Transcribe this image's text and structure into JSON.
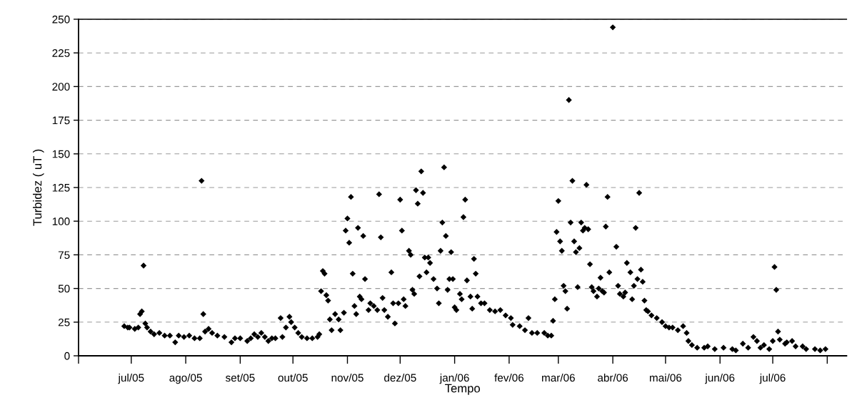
{
  "chart_data": {
    "type": "scatter",
    "xlabel": "Tempo",
    "ylabel": "Turbidez ( uT )",
    "xlim": [
      "2005-06-01",
      "2006-08-12"
    ],
    "xticks": [
      {
        "value": "2005-06-01",
        "label": null
      },
      {
        "value": "2005-07-01",
        "label": "jul/05"
      },
      {
        "value": "2005-08-01",
        "label": "ago/05"
      },
      {
        "value": "2005-09-01",
        "label": "set/05"
      },
      {
        "value": "2005-10-01",
        "label": "out/05"
      },
      {
        "value": "2005-11-01",
        "label": "nov/05"
      },
      {
        "value": "2005-12-01",
        "label": "dez/05"
      },
      {
        "value": "2006-01-01",
        "label": "jan/06"
      },
      {
        "value": "2006-02-01",
        "label": "fev/06"
      },
      {
        "value": "2006-03-01",
        "label": "mar/06"
      },
      {
        "value": "2006-04-01",
        "label": "abr/06"
      },
      {
        "value": "2006-05-01",
        "label": "mai/06"
      },
      {
        "value": "2006-06-01",
        "label": "jun/06"
      },
      {
        "value": "2006-07-01",
        "label": "jul/06"
      },
      {
        "value": "2006-08-01",
        "label": null
      }
    ],
    "ylim": [
      0,
      250
    ],
    "yticks": [
      0,
      25,
      50,
      75,
      100,
      125,
      150,
      175,
      200,
      225,
      250
    ],
    "grid": "y",
    "marker": "diamond",
    "series": [
      {
        "color": "#000000",
        "x": [
          "2005-06-27",
          "2005-06-29",
          "2005-06-30",
          "2005-07-03",
          "2005-07-05",
          "2005-07-06",
          "2005-07-07",
          "2005-07-08",
          "2005-07-09",
          "2005-07-10",
          "2005-07-12",
          "2005-07-14",
          "2005-07-17",
          "2005-07-20",
          "2005-07-23",
          "2005-07-26",
          "2005-07-28",
          "2005-07-31",
          "2005-08-03",
          "2005-08-06",
          "2005-08-09",
          "2005-08-10",
          "2005-08-11",
          "2005-08-12",
          "2005-08-14",
          "2005-08-16",
          "2005-08-19",
          "2005-08-23",
          "2005-08-27",
          "2005-08-29",
          "2005-09-01",
          "2005-09-05",
          "2005-09-07",
          "2005-09-09",
          "2005-09-11",
          "2005-09-13",
          "2005-09-15",
          "2005-09-17",
          "2005-09-19",
          "2005-09-21",
          "2005-09-24",
          "2005-09-25",
          "2005-09-27",
          "2005-09-29",
          "2005-09-30",
          "2005-10-02",
          "2005-10-04",
          "2005-10-06",
          "2005-10-09",
          "2005-10-12",
          "2005-10-15",
          "2005-10-16",
          "2005-10-17",
          "2005-10-18",
          "2005-10-19",
          "2005-10-20",
          "2005-10-21",
          "2005-10-22",
          "2005-10-23",
          "2005-10-25",
          "2005-10-27",
          "2005-10-28",
          "2005-10-30",
          "2005-10-31",
          "2005-11-01",
          "2005-11-02",
          "2005-11-03",
          "2005-11-04",
          "2005-11-05",
          "2005-11-06",
          "2005-11-07",
          "2005-11-08",
          "2005-11-09",
          "2005-11-10",
          "2005-11-11",
          "2005-11-13",
          "2005-11-14",
          "2005-11-16",
          "2005-11-18",
          "2005-11-19",
          "2005-11-20",
          "2005-11-21",
          "2005-11-22",
          "2005-11-24",
          "2005-11-26",
          "2005-11-27",
          "2005-11-28",
          "2005-11-30",
          "2005-12-01",
          "2005-12-02",
          "2005-12-03",
          "2005-12-04",
          "2005-12-06",
          "2005-12-07",
          "2005-12-08",
          "2005-12-09",
          "2005-12-10",
          "2005-12-11",
          "2005-12-12",
          "2005-12-13",
          "2005-12-14",
          "2005-12-15",
          "2005-12-16",
          "2005-12-17",
          "2005-12-18",
          "2005-12-20",
          "2005-12-22",
          "2005-12-23",
          "2005-12-24",
          "2005-12-25",
          "2005-12-26",
          "2005-12-27",
          "2005-12-28",
          "2005-12-29",
          "2005-12-30",
          "2005-12-31",
          "2006-01-01",
          "2006-01-02",
          "2006-01-04",
          "2006-01-05",
          "2006-01-06",
          "2006-01-07",
          "2006-01-08",
          "2006-01-10",
          "2006-01-11",
          "2006-01-12",
          "2006-01-13",
          "2006-01-14",
          "2006-01-16",
          "2006-01-18",
          "2006-01-21",
          "2006-01-24",
          "2006-01-27",
          "2006-01-30",
          "2006-02-02",
          "2006-02-03",
          "2006-02-07",
          "2006-02-10",
          "2006-02-12",
          "2006-02-14",
          "2006-02-17",
          "2006-02-21",
          "2006-02-23",
          "2006-02-25",
          "2006-02-26",
          "2006-02-27",
          "2006-02-28",
          "2006-03-01",
          "2006-03-02",
          "2006-03-03",
          "2006-03-04",
          "2006-03-05",
          "2006-03-06",
          "2006-03-07",
          "2006-03-08",
          "2006-03-09",
          "2006-03-10",
          "2006-03-11",
          "2006-03-12",
          "2006-03-13",
          "2006-03-14",
          "2006-03-15",
          "2006-03-16",
          "2006-03-17",
          "2006-03-18",
          "2006-03-19",
          "2006-03-20",
          "2006-03-21",
          "2006-03-23",
          "2006-03-24",
          "2006-03-25",
          "2006-03-26",
          "2006-03-27",
          "2006-03-28",
          "2006-03-29",
          "2006-03-30",
          "2006-04-01",
          "2006-04-03",
          "2006-04-04",
          "2006-04-05",
          "2006-04-07",
          "2006-04-08",
          "2006-04-09",
          "2006-04-11",
          "2006-04-12",
          "2006-04-13",
          "2006-04-14",
          "2006-04-15",
          "2006-04-16",
          "2006-04-17",
          "2006-04-18",
          "2006-04-19",
          "2006-04-20",
          "2006-04-21",
          "2006-04-23",
          "2006-04-26",
          "2006-04-29",
          "2006-05-01",
          "2006-05-03",
          "2006-05-05",
          "2006-05-08",
          "2006-05-11",
          "2006-05-13",
          "2006-05-14",
          "2006-05-16",
          "2006-05-19",
          "2006-05-23",
          "2006-05-25",
          "2006-05-29",
          "2006-06-03",
          "2006-06-08",
          "2006-06-10",
          "2006-06-14",
          "2006-06-17",
          "2006-06-20",
          "2006-06-22",
          "2006-06-24",
          "2006-06-26",
          "2006-06-29",
          "2006-07-01",
          "2006-07-02",
          "2006-07-03",
          "2006-07-04",
          "2006-07-05",
          "2006-07-08",
          "2006-07-09",
          "2006-07-12",
          "2006-07-14",
          "2006-07-18",
          "2006-07-20",
          "2006-07-25",
          "2006-07-28",
          "2006-07-31"
        ],
        "values": [
          22,
          21,
          21,
          20,
          21,
          31,
          33,
          67,
          24,
          21,
          18,
          16,
          17,
          15,
          15,
          10,
          15,
          14,
          15,
          13,
          13,
          130,
          31,
          18,
          20,
          17,
          15,
          14,
          10,
          13,
          13,
          11,
          13,
          16,
          14,
          17,
          14,
          11,
          13,
          13,
          28,
          14,
          21,
          29,
          25,
          21,
          17,
          14,
          13,
          13,
          14,
          16,
          48,
          63,
          61,
          45,
          41,
          27,
          19,
          31,
          27,
          19,
          32,
          93,
          102,
          84,
          118,
          61,
          37,
          31,
          95,
          44,
          42,
          89,
          57,
          34,
          39,
          37,
          34,
          120,
          88,
          43,
          34,
          29,
          62,
          39,
          24,
          39,
          116,
          93,
          42,
          37,
          78,
          75,
          49,
          46,
          123,
          113,
          59,
          137,
          121,
          73,
          62,
          73,
          69,
          57,
          50,
          39,
          78,
          99,
          140,
          89,
          49,
          57,
          77,
          57,
          36,
          34,
          46,
          42,
          103,
          116,
          56,
          44,
          35,
          72,
          61,
          44,
          39,
          39,
          34,
          33,
          34,
          30,
          28,
          23,
          22,
          19,
          28,
          17,
          17,
          17,
          15,
          15,
          26,
          42,
          92,
          115,
          85,
          78,
          52,
          48,
          35,
          190,
          99,
          130,
          85,
          77,
          51,
          80,
          99,
          93,
          95,
          127,
          94,
          68,
          51,
          48,
          44,
          50,
          58,
          48,
          47,
          96,
          118,
          62,
          244,
          81,
          52,
          46,
          44,
          47,
          69,
          62,
          42,
          52,
          95,
          57,
          121,
          64,
          55,
          41,
          34,
          33,
          30,
          28,
          25,
          22,
          21,
          21,
          19,
          22,
          17,
          11,
          8,
          6,
          6,
          7,
          5,
          6,
          5,
          4,
          9,
          6,
          14,
          11,
          6,
          8,
          5,
          11,
          66,
          49,
          18,
          12,
          9,
          10,
          11,
          7,
          7,
          5,
          5,
          4,
          5
        ]
      }
    ]
  }
}
